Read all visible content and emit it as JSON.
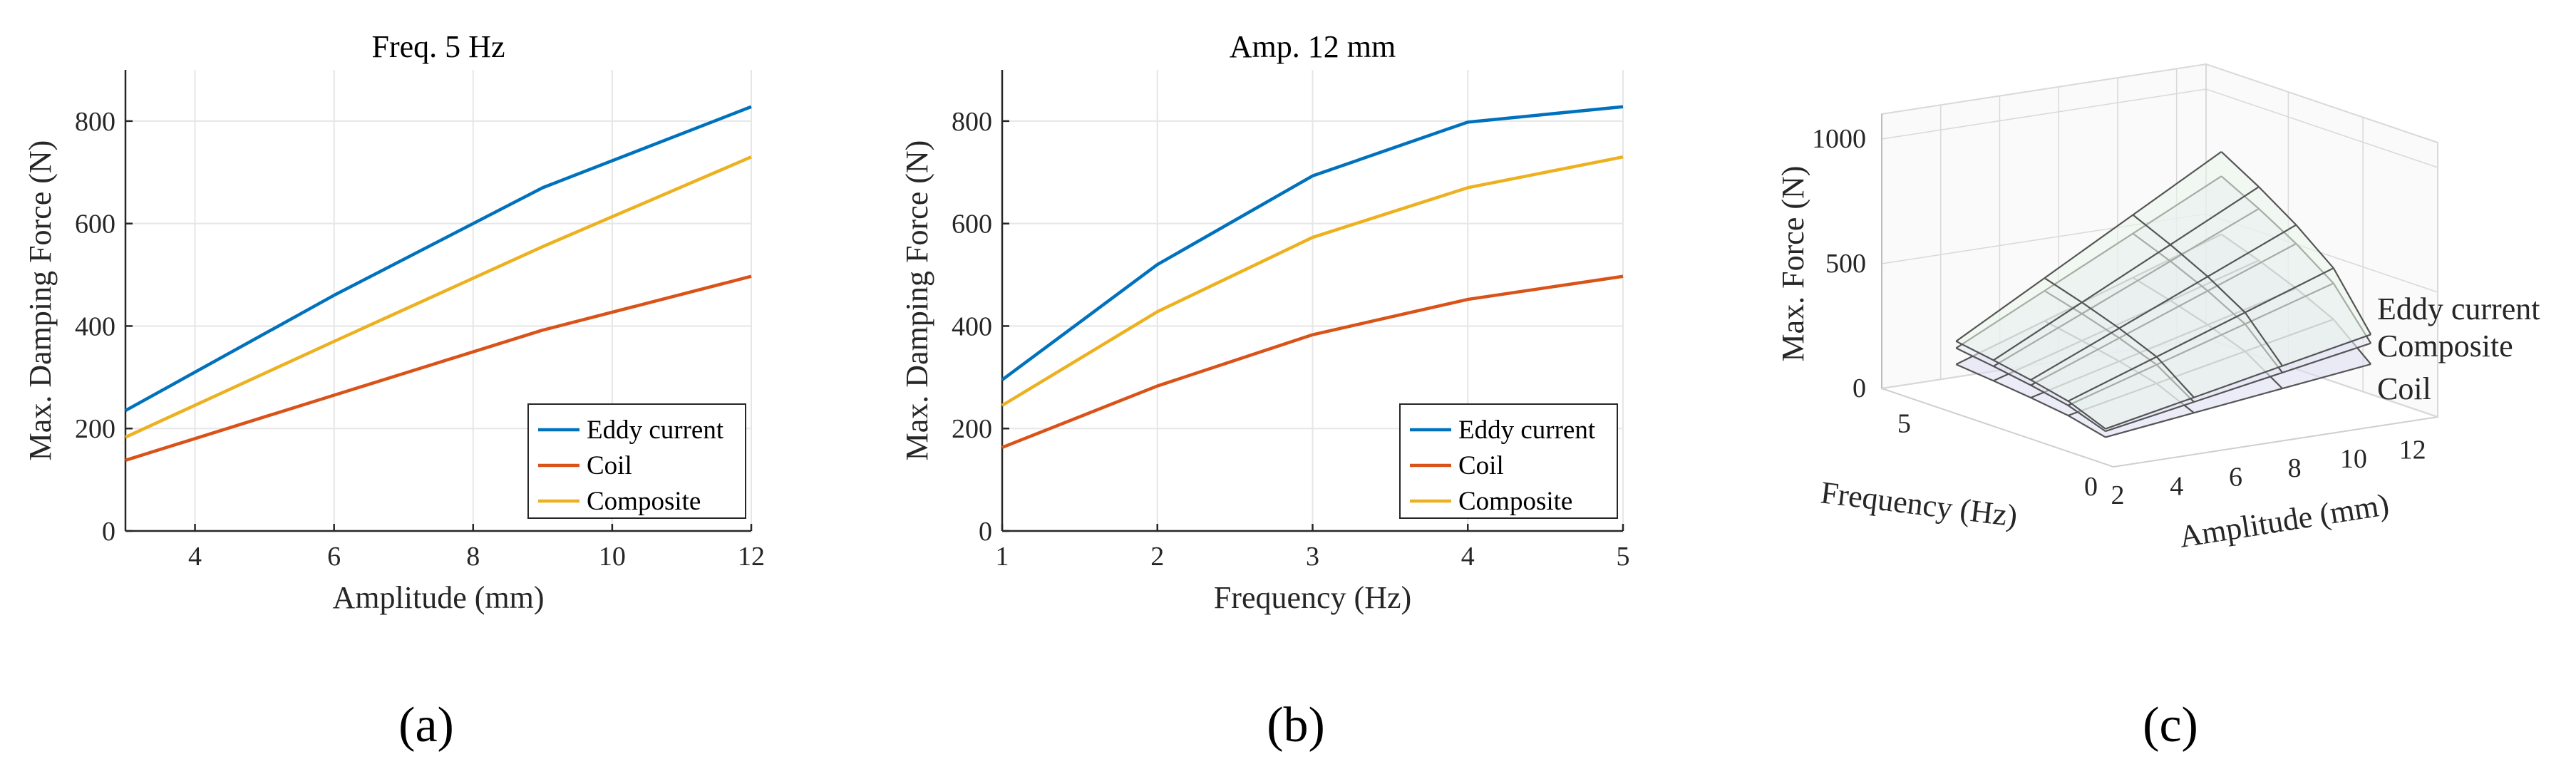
{
  "chart_data": [
    {
      "type": "line",
      "panel_label": "(a)",
      "title": "Freq. 5 Hz",
      "xlabel": "Amplitude (mm)",
      "ylabel": "Max. Damping Force (N)",
      "xlim": [
        3,
        12
      ],
      "ylim": [
        0,
        900
      ],
      "xticks": [
        4,
        6,
        8,
        10,
        12
      ],
      "yticks": [
        0,
        200,
        400,
        600,
        800
      ],
      "grid": true,
      "legend_position": "bottom-right",
      "series": [
        {
          "name": "Eddy current",
          "color": "#0072BD",
          "x": [
            3,
            6,
            9,
            12
          ],
          "values": [
            235,
            460,
            670,
            828
          ]
        },
        {
          "name": "Coil",
          "color": "#D95319",
          "x": [
            3,
            6,
            9,
            12
          ],
          "values": [
            138,
            265,
            392,
            497
          ]
        },
        {
          "name": "Composite",
          "color": "#EDB120",
          "x": [
            3,
            6,
            9,
            12
          ],
          "values": [
            183,
            370,
            555,
            730
          ]
        }
      ]
    },
    {
      "type": "line",
      "panel_label": "(b)",
      "title": "Amp. 12 mm",
      "xlabel": "Frequency (Hz)",
      "ylabel": "Max. Damping Force (N)",
      "xlim": [
        1,
        5
      ],
      "ylim": [
        0,
        900
      ],
      "xticks": [
        1,
        2,
        3,
        4,
        5
      ],
      "yticks": [
        0,
        200,
        400,
        600,
        800
      ],
      "grid": true,
      "legend_position": "bottom-right",
      "series": [
        {
          "name": "Eddy current",
          "color": "#0072BD",
          "x": [
            1,
            2,
            3,
            4,
            5
          ],
          "values": [
            295,
            520,
            693,
            798,
            828
          ]
        },
        {
          "name": "Coil",
          "color": "#D95319",
          "x": [
            1,
            2,
            3,
            4,
            5
          ],
          "values": [
            163,
            283,
            383,
            452,
            497
          ]
        },
        {
          "name": "Composite",
          "color": "#EDB120",
          "x": [
            1,
            2,
            3,
            4,
            5
          ],
          "values": [
            245,
            428,
            573,
            670,
            730
          ]
        }
      ]
    },
    {
      "type": "surface",
      "panel_label": "(c)",
      "zlabel": "Max. Force (N)",
      "xlabel": "Amplitude (mm)",
      "ylabel": "Frequency (Hz)",
      "zticks": [
        0,
        500,
        1000
      ],
      "xticks": [
        2,
        4,
        6,
        8,
        10,
        12
      ],
      "yticks": [
        0,
        5
      ],
      "surface_labels": [
        "Eddy current",
        "Composite",
        "Coil"
      ],
      "amplitudes": [
        3,
        6,
        9,
        12
      ],
      "frequencies": [
        1,
        2,
        3,
        4,
        5
      ],
      "surfaces": [
        {
          "name": "Eddy current",
          "peak": 828
        },
        {
          "name": "Composite",
          "peak": 730
        },
        {
          "name": "Coil",
          "peak": 497
        }
      ]
    }
  ]
}
